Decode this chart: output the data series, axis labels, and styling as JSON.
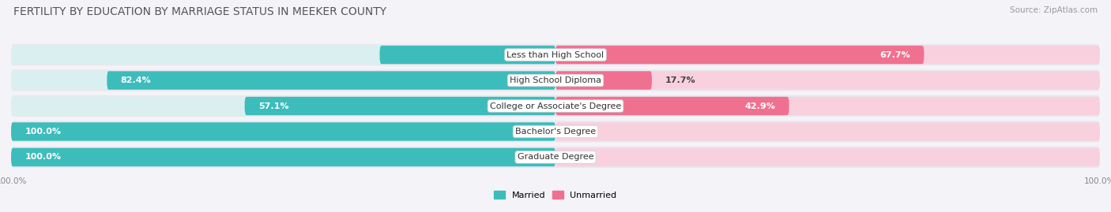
{
  "title": "FERTILITY BY EDUCATION BY MARRIAGE STATUS IN MEEKER COUNTY",
  "source": "Source: ZipAtlas.com",
  "categories": [
    "Less than High School",
    "High School Diploma",
    "College or Associate's Degree",
    "Bachelor's Degree",
    "Graduate Degree"
  ],
  "married": [
    32.3,
    82.4,
    57.1,
    100.0,
    100.0
  ],
  "unmarried": [
    67.7,
    17.7,
    42.9,
    0.0,
    0.0
  ],
  "married_color": "#3dbcbc",
  "unmarried_color": "#f07090",
  "unmarried_bg_color": "#f9d0de",
  "married_bg_color": "#daf0f0",
  "row_bg_color": "#e8e8ee",
  "page_bg_color": "#f4f4f8",
  "title_fontsize": 10,
  "label_fontsize": 8.0,
  "tick_fontsize": 7.5,
  "source_fontsize": 7.5,
  "cat_label_fontsize": 8.0
}
